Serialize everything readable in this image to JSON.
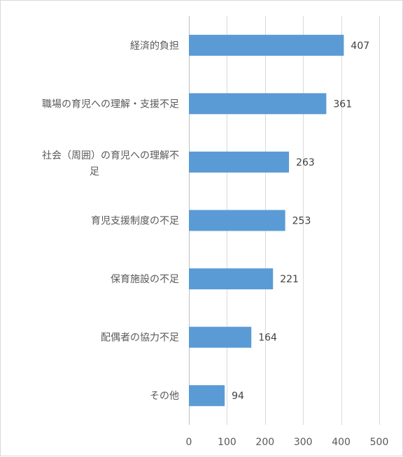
{
  "chart_data": {
    "type": "bar",
    "orientation": "horizontal",
    "title": "",
    "xlabel": "",
    "ylabel": "",
    "categories": [
      "経済的負担",
      "職場の育児への理解・支援不足",
      "社会（周囲）の育児への理解不足",
      "育児支援制度の不足",
      "保育施設の不足",
      "配偶者の協力不足",
      "その他"
    ],
    "category_lines": [
      [
        "経済的負担"
      ],
      [
        "職場の育児への理解・支援不足"
      ],
      [
        "社会（周囲）の育児への理解不",
        "足"
      ],
      [
        "育児支援制度の不足"
      ],
      [
        "保育施設の不足"
      ],
      [
        "配偶者の協力不足"
      ],
      [
        "その他"
      ]
    ],
    "values": [
      407,
      361,
      263,
      253,
      221,
      164,
      94
    ],
    "xlim": [
      0,
      500
    ],
    "xticks": [
      0,
      100,
      200,
      300,
      400,
      500
    ],
    "grid": true,
    "legend": "none",
    "bar_color": "#5b9bd5",
    "data_labels": true
  }
}
